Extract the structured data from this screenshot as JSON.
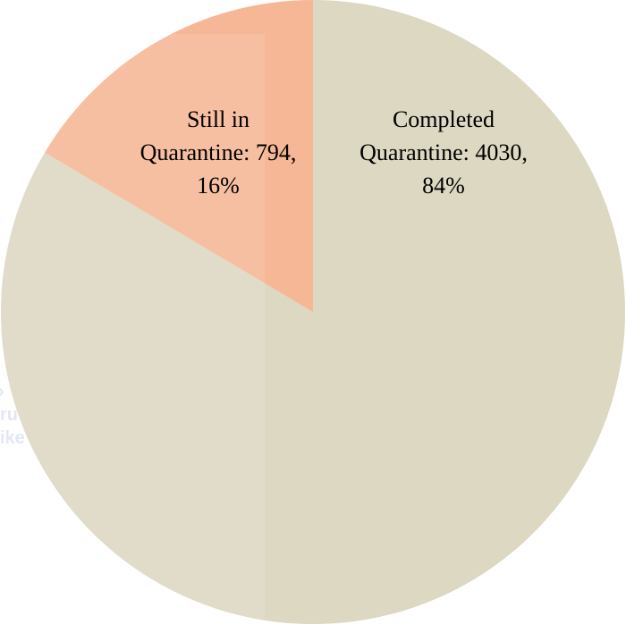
{
  "chart_data": {
    "type": "pie",
    "title": "",
    "slices": [
      {
        "label": "Completed Quarantine",
        "value": 4030,
        "percent": 84,
        "color": "#ddd8c2",
        "label_lines": [
          "Completed",
          "Quarantine: 4030,",
          "84%"
        ]
      },
      {
        "label": "Still in Quarantine",
        "value": 794,
        "percent": 16,
        "color": "#f5b795",
        "label_lines": [
          "Still in",
          "Quarantine: 794,",
          "16%"
        ]
      }
    ],
    "start_angle_deg": 0,
    "direction": "clockwise",
    "legend": "none"
  }
}
